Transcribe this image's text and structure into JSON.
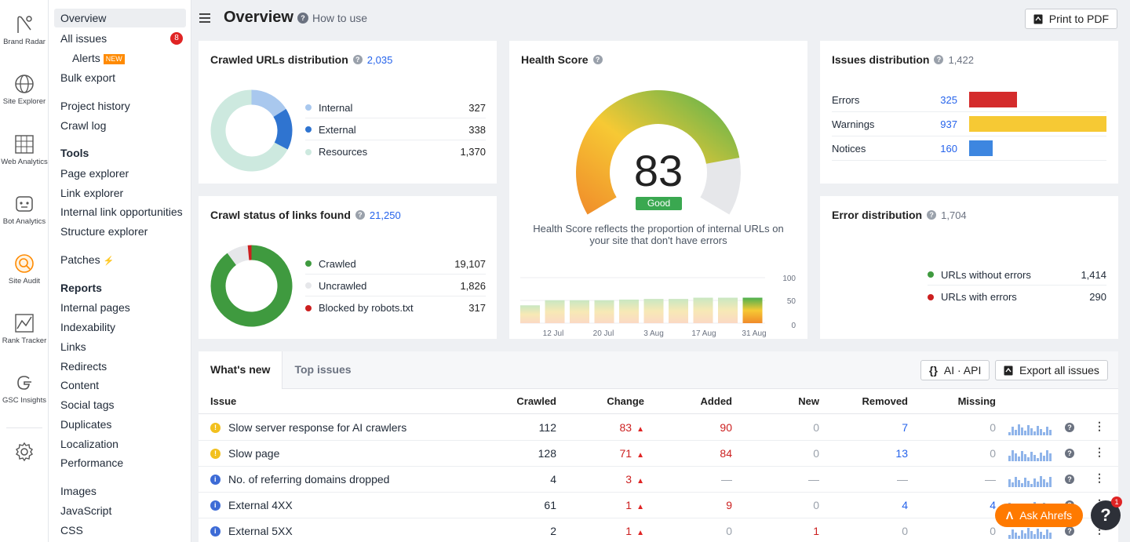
{
  "rail": [
    {
      "label": "Brand Radar",
      "icon": "brand-radar-icon"
    },
    {
      "label": "Site Explorer",
      "icon": "globe-icon"
    },
    {
      "label": "Web Analytics",
      "icon": "grid-chart-icon"
    },
    {
      "label": "Bot Analytics",
      "icon": "bot-icon"
    },
    {
      "label": "Site Audit",
      "icon": "site-audit-icon"
    },
    {
      "label": "Rank Tracker",
      "icon": "rank-tracker-icon"
    },
    {
      "label": "GSC Insights",
      "icon": "google-icon"
    },
    {
      "label": "",
      "icon": "gear-icon"
    }
  ],
  "nav": {
    "overview": "Overview",
    "all_issues": "All issues",
    "all_issues_badge": "8",
    "alerts": "Alerts",
    "alerts_tag": "NEW",
    "bulk_export": "Bulk export",
    "project_history": "Project history",
    "crawl_log": "Crawl log",
    "tools_head": "Tools",
    "tools": [
      "Page explorer",
      "Link explorer",
      "Internal link opportunities",
      "Structure explorer"
    ],
    "patches": "Patches",
    "reports_head": "Reports",
    "reports": [
      "Internal pages",
      "Indexability",
      "Links",
      "Redirects",
      "Content",
      "Social tags",
      "Duplicates",
      "Localization",
      "Performance"
    ],
    "more": [
      "Images",
      "JavaScript",
      "CSS"
    ]
  },
  "header": {
    "title": "Overview",
    "how_to": "How to use",
    "print": "Print to PDF"
  },
  "crawled_urls": {
    "title": "Crawled URLs distribution",
    "count": "2,035",
    "items": [
      {
        "label": "Internal",
        "value": "327",
        "color": "#a9c8ee"
      },
      {
        "label": "External",
        "value": "338",
        "color": "#2f74d0"
      },
      {
        "label": "Resources",
        "value": "1,370",
        "color": "#cde9df"
      }
    ],
    "values": [
      327,
      338,
      1370
    ]
  },
  "crawl_status": {
    "title": "Crawl status of links found",
    "count": "21,250",
    "items": [
      {
        "label": "Crawled",
        "value": "19,107",
        "color": "#3f9a3f"
      },
      {
        "label": "Uncrawled",
        "value": "1,826",
        "color": "#e6e7ea"
      },
      {
        "label": "Blocked by robots.txt",
        "value": "317",
        "color": "#cc1f1f"
      }
    ],
    "values": [
      19107,
      1826,
      317
    ]
  },
  "health": {
    "title": "Health Score",
    "score": "83",
    "score_value": 83,
    "status": "Good",
    "description": "Health Score reflects the proportion of internal URLs on your site that don't have errors",
    "chart_data": {
      "type": "bar",
      "values": [
        28,
        30,
        34,
        32,
        36,
        36,
        36,
        36,
        36,
        36,
        36,
        36,
        37,
        37,
        37,
        37,
        37,
        38,
        38,
        38,
        38,
        38,
        38,
        38,
        39,
        39,
        40,
        40,
        40,
        40,
        40,
        40,
        40,
        40
      ],
      "x_ticks": [
        "12 Jul",
        "20 Jul",
        "3 Aug",
        "17 Aug",
        "31 Aug"
      ],
      "y_ticks": [
        "100",
        "50",
        "0"
      ],
      "ylim": [
        0,
        100
      ]
    }
  },
  "issues_dist": {
    "title": "Issues distribution",
    "count": "1,422",
    "items": [
      {
        "label": "Errors",
        "value": "325",
        "num": 325,
        "color": "#d42b2b"
      },
      {
        "label": "Warnings",
        "value": "937",
        "num": 937,
        "color": "#f6c934"
      },
      {
        "label": "Notices",
        "value": "160",
        "num": 160,
        "color": "#3d86e0"
      }
    ]
  },
  "error_dist": {
    "title": "Error distribution",
    "count": "1,704",
    "items": [
      {
        "label": "URLs without errors",
        "value": "1,414",
        "color": "#3f9a3f"
      },
      {
        "label": "URLs with errors",
        "value": "290",
        "color": "#cc1f1f"
      }
    ]
  },
  "table": {
    "tabs": [
      "What's new",
      "Top issues"
    ],
    "ai_api": "AI · API",
    "export": "Export all issues",
    "columns": [
      "Issue",
      "Crawled",
      "Change",
      "Added",
      "New",
      "Removed",
      "Missing"
    ],
    "rows": [
      {
        "type": "warning",
        "issue": "Slow server response for AI crawlers",
        "crawled": "112",
        "change": "83",
        "added": "90",
        "new": "0",
        "removed": "7",
        "missing": "0"
      },
      {
        "type": "warning",
        "issue": "Slow page",
        "crawled": "128",
        "change": "71",
        "added": "84",
        "new": "0",
        "removed": "13",
        "missing": "0"
      },
      {
        "type": "notice",
        "issue": "No. of referring domains dropped",
        "crawled": "4",
        "change": "3",
        "added": "—",
        "new": "—",
        "removed": "—",
        "missing": "—"
      },
      {
        "type": "notice",
        "issue": "External 4XX",
        "crawled": "61",
        "change": "1",
        "added": "9",
        "new": "0",
        "removed": "4",
        "missing": "4"
      },
      {
        "type": "notice",
        "issue": "External 5XX",
        "crawled": "2",
        "change": "1",
        "added": "0",
        "new": "1",
        "removed": "0",
        "missing": "0"
      }
    ]
  },
  "ask": "Ask Ahrefs",
  "help_badge": "1"
}
